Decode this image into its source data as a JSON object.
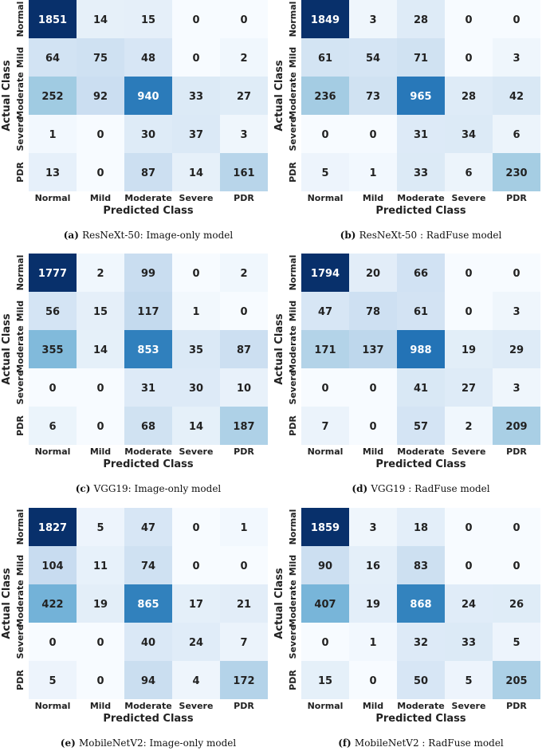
{
  "colors": {
    "low": "#f7fbff",
    "high": "#08306b",
    "text_dark": "#222222",
    "text_light": "#ffffff"
  },
  "chart_data": [
    {
      "type": "heatmap",
      "caption_tag": "(a)",
      "caption_text": "ResNeXt-50: Image-only model",
      "xlabel": "Predicted Class",
      "ylabel": "Actual Class",
      "x_categories": [
        "Normal",
        "Mild",
        "Moderate",
        "Severe",
        "PDR"
      ],
      "y_categories": [
        "Normal",
        "Mild",
        "Moderate",
        "Severe",
        "PDR"
      ],
      "values": [
        [
          1851,
          14,
          15,
          0,
          0
        ],
        [
          64,
          75,
          48,
          0,
          2
        ],
        [
          252,
          92,
          940,
          33,
          27
        ],
        [
          1,
          0,
          30,
          37,
          3
        ],
        [
          13,
          0,
          87,
          14,
          161
        ]
      ]
    },
    {
      "type": "heatmap",
      "caption_tag": "(b)",
      "caption_text": "ResNeXt-50 : RadFuse model",
      "xlabel": "Predicted Class",
      "ylabel": "Actual Class",
      "x_categories": [
        "Normal",
        "Mild",
        "Moderate",
        "Severe",
        "PDR"
      ],
      "y_categories": [
        "Normal",
        "Mild",
        "Moderate",
        "Severe",
        "PDR"
      ],
      "values": [
        [
          1849,
          3,
          28,
          0,
          0
        ],
        [
          61,
          54,
          71,
          0,
          3
        ],
        [
          236,
          73,
          965,
          28,
          42
        ],
        [
          0,
          0,
          31,
          34,
          6
        ],
        [
          5,
          1,
          33,
          6,
          230
        ]
      ]
    },
    {
      "type": "heatmap",
      "caption_tag": "(c)",
      "caption_text": "VGG19: Image-only model",
      "xlabel": "Predicted Class",
      "ylabel": "Actual Class",
      "x_categories": [
        "Normal",
        "Mild",
        "Moderate",
        "Severe",
        "PDR"
      ],
      "y_categories": [
        "Normal",
        "Mild",
        "Moderate",
        "Severe",
        "PDR"
      ],
      "values": [
        [
          1777,
          2,
          99,
          0,
          2
        ],
        [
          56,
          15,
          117,
          1,
          0
        ],
        [
          355,
          14,
          853,
          35,
          87
        ],
        [
          0,
          0,
          31,
          30,
          10
        ],
        [
          6,
          0,
          68,
          14,
          187
        ]
      ]
    },
    {
      "type": "heatmap",
      "caption_tag": "(d)",
      "caption_text": "VGG19 : RadFuse model",
      "xlabel": "Predicted Class",
      "ylabel": "Actual Class",
      "x_categories": [
        "Normal",
        "Mild",
        "Moderate",
        "Severe",
        "PDR"
      ],
      "y_categories": [
        "Normal",
        "Mild",
        "Moderate",
        "Severe",
        "PDR"
      ],
      "values": [
        [
          1794,
          20,
          66,
          0,
          0
        ],
        [
          47,
          78,
          61,
          0,
          3
        ],
        [
          171,
          137,
          988,
          19,
          29
        ],
        [
          0,
          0,
          41,
          27,
          3
        ],
        [
          7,
          0,
          57,
          2,
          209
        ]
      ]
    },
    {
      "type": "heatmap",
      "caption_tag": "(e)",
      "caption_text": "MobileNetV2: Image-only model",
      "xlabel": "Predicted Class",
      "ylabel": "Actual Class",
      "x_categories": [
        "Normal",
        "Mild",
        "Moderate",
        "Severe",
        "PDR"
      ],
      "y_categories": [
        "Normal",
        "Mild",
        "Moderate",
        "Severe",
        "PDR"
      ],
      "values": [
        [
          1827,
          5,
          47,
          0,
          1
        ],
        [
          104,
          11,
          74,
          0,
          0
        ],
        [
          422,
          19,
          865,
          17,
          21
        ],
        [
          0,
          0,
          40,
          24,
          7
        ],
        [
          5,
          0,
          94,
          4,
          172
        ]
      ]
    },
    {
      "type": "heatmap",
      "caption_tag": "(f)",
      "caption_text": "MobileNetV2 : RadFuse model",
      "xlabel": "Predicted Class",
      "ylabel": "Actual Class",
      "x_categories": [
        "Normal",
        "Mild",
        "Moderate",
        "Severe",
        "PDR"
      ],
      "y_categories": [
        "Normal",
        "Mild",
        "Moderate",
        "Severe",
        "PDR"
      ],
      "values": [
        [
          1859,
          3,
          18,
          0,
          0
        ],
        [
          90,
          16,
          83,
          0,
          0
        ],
        [
          407,
          19,
          868,
          24,
          26
        ],
        [
          0,
          1,
          32,
          33,
          5
        ],
        [
          15,
          0,
          50,
          5,
          205
        ]
      ]
    }
  ]
}
